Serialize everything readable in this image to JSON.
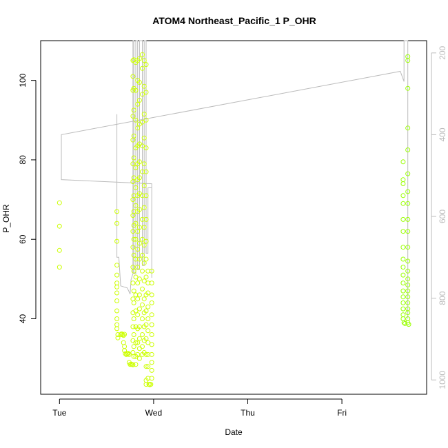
{
  "chart_data": {
    "type": "scatter",
    "title": "ATOM4 Northeast_Pacific_1 P_OHR",
    "xlabel": "Date",
    "ylabel": "P_OHR",
    "x_unit": "days",
    "x_ticks": [
      {
        "value": 0,
        "label": "Tue"
      },
      {
        "value": 1,
        "label": "Wed"
      },
      {
        "value": 2,
        "label": "Thu"
      },
      {
        "value": 3,
        "label": "Fri"
      }
    ],
    "xlim": [
      -0.2,
      3.9
    ],
    "ylim": [
      21,
      110
    ],
    "y_ticks": [
      40,
      60,
      80,
      100
    ],
    "y2_ticks": [
      200,
      400,
      600,
      800,
      1000
    ],
    "y2lim": [
      1035,
      170
    ],
    "grid": false,
    "colors": {
      "points_early": "#ccff00",
      "points_late": "#99ff00",
      "pressure_trace": "#bbbbbb"
    },
    "series": [
      {
        "values": [
          [
            0.0,
            69.2
          ],
          [
            0.0,
            63.3
          ],
          [
            0.0,
            57.2
          ],
          [
            0.0,
            53.0
          ],
          [
            0.61,
            67.0
          ],
          [
            0.61,
            64.0
          ],
          [
            0.61,
            59.5
          ],
          [
            0.61,
            53.5
          ],
          [
            0.61,
            51.0
          ],
          [
            0.61,
            49.0
          ],
          [
            0.61,
            48.0
          ],
          [
            0.61,
            46.5
          ],
          [
            0.61,
            44.5
          ],
          [
            0.61,
            42.0
          ],
          [
            0.61,
            40.0
          ],
          [
            0.61,
            38.5
          ],
          [
            0.61,
            37.5
          ],
          [
            0.62,
            36.0
          ],
          [
            0.62,
            35.2
          ],
          [
            0.65,
            36.0
          ],
          [
            0.66,
            36.2
          ],
          [
            0.67,
            36.0
          ],
          [
            0.68,
            35.8
          ],
          [
            0.69,
            36.1
          ],
          [
            0.68,
            34.0
          ],
          [
            0.69,
            33.0
          ],
          [
            0.69,
            32.0
          ],
          [
            0.7,
            31.2
          ],
          [
            0.71,
            31.0
          ],
          [
            0.72,
            31.2
          ],
          [
            0.73,
            31.3
          ],
          [
            0.74,
            31.0
          ],
          [
            0.74,
            29.0
          ],
          [
            0.75,
            28.5
          ],
          [
            0.76,
            28.6
          ],
          [
            0.77,
            28.5
          ],
          [
            0.78,
            28.4
          ],
          [
            0.78,
            105.0
          ],
          [
            0.78,
            101.0
          ],
          [
            0.78,
            97.5
          ],
          [
            0.78,
            91.0
          ],
          [
            0.78,
            85.0
          ],
          [
            0.78,
            79.0
          ],
          [
            0.78,
            74.5
          ],
          [
            0.78,
            70.0
          ],
          [
            0.78,
            66.0
          ],
          [
            0.78,
            62.0
          ],
          [
            0.78,
            58.0
          ],
          [
            0.78,
            53.0
          ],
          [
            0.78,
            49.0
          ],
          [
            0.78,
            45.0
          ],
          [
            0.78,
            41.5
          ],
          [
            0.78,
            38.0
          ],
          [
            0.78,
            34.5
          ],
          [
            0.78,
            31.5
          ],
          [
            0.79,
            105.2
          ],
          [
            0.79,
            98.0
          ],
          [
            0.79,
            92.5
          ],
          [
            0.79,
            86.0
          ],
          [
            0.79,
            80.5
          ],
          [
            0.79,
            75.5
          ],
          [
            0.79,
            71.0
          ],
          [
            0.79,
            67.0
          ],
          [
            0.79,
            63.5
          ],
          [
            0.79,
            60.0
          ],
          [
            0.79,
            56.0
          ],
          [
            0.79,
            52.0
          ],
          [
            0.79,
            47.0
          ],
          [
            0.79,
            44.0
          ],
          [
            0.79,
            40.0
          ],
          [
            0.79,
            36.0
          ],
          [
            0.79,
            33.0
          ],
          [
            0.79,
            30.5
          ],
          [
            0.81,
            104.5
          ],
          [
            0.81,
            97.5
          ],
          [
            0.81,
            90.0
          ],
          [
            0.81,
            83.0
          ],
          [
            0.81,
            78.0
          ],
          [
            0.81,
            73.0
          ],
          [
            0.81,
            68.5
          ],
          [
            0.81,
            64.0
          ],
          [
            0.81,
            60.0
          ],
          [
            0.81,
            55.0
          ],
          [
            0.81,
            50.5
          ],
          [
            0.81,
            46.0
          ],
          [
            0.81,
            42.0
          ],
          [
            0.81,
            38.0
          ],
          [
            0.81,
            34.0
          ],
          [
            0.81,
            30.5
          ],
          [
            0.81,
            28.5
          ],
          [
            0.83,
            105.0
          ],
          [
            0.83,
            100.0
          ],
          [
            0.83,
            94.0
          ],
          [
            0.83,
            88.0
          ],
          [
            0.83,
            83.5
          ],
          [
            0.83,
            79.0
          ],
          [
            0.83,
            75.0
          ],
          [
            0.83,
            71.0
          ],
          [
            0.83,
            67.0
          ],
          [
            0.83,
            62.0
          ],
          [
            0.83,
            57.5
          ],
          [
            0.83,
            53.0
          ],
          [
            0.83,
            49.0
          ],
          [
            0.83,
            45.0
          ],
          [
            0.83,
            41.0
          ],
          [
            0.83,
            37.5
          ],
          [
            0.83,
            34.0
          ],
          [
            0.83,
            31.0
          ],
          [
            0.85,
            105.5
          ],
          [
            0.85,
            99.5
          ],
          [
            0.85,
            95.0
          ],
          [
            0.85,
            89.0
          ],
          [
            0.85,
            84.0
          ],
          [
            0.85,
            79.5
          ],
          [
            0.85,
            75.5
          ],
          [
            0.85,
            71.5
          ],
          [
            0.85,
            67.5
          ],
          [
            0.85,
            63.0
          ],
          [
            0.85,
            59.0
          ],
          [
            0.85,
            55.0
          ],
          [
            0.85,
            50.0
          ],
          [
            0.85,
            46.0
          ],
          [
            0.85,
            42.5
          ],
          [
            0.85,
            38.0
          ],
          [
            0.85,
            35.0
          ],
          [
            0.85,
            32.5
          ],
          [
            0.85,
            30.0
          ],
          [
            0.88,
            106.5
          ],
          [
            0.88,
            103.0
          ],
          [
            0.88,
            96.5
          ],
          [
            0.88,
            89.5
          ],
          [
            0.88,
            83.5
          ],
          [
            0.88,
            77.0
          ],
          [
            0.88,
            71.0
          ],
          [
            0.88,
            65.0
          ],
          [
            0.88,
            60.0
          ],
          [
            0.88,
            56.0
          ],
          [
            0.88,
            52.0
          ],
          [
            0.88,
            47.5
          ],
          [
            0.88,
            43.5
          ],
          [
            0.88,
            40.0
          ],
          [
            0.88,
            36.0
          ],
          [
            0.88,
            33.0
          ],
          [
            0.88,
            31.0
          ],
          [
            0.9,
            105.0
          ],
          [
            0.9,
            98.5
          ],
          [
            0.9,
            91.5
          ],
          [
            0.9,
            85.5
          ],
          [
            0.9,
            79.0
          ],
          [
            0.9,
            73.5
          ],
          [
            0.9,
            68.0
          ],
          [
            0.9,
            63.0
          ],
          [
            0.9,
            58.5
          ],
          [
            0.9,
            54.0
          ],
          [
            0.9,
            49.5
          ],
          [
            0.9,
            45.0
          ],
          [
            0.9,
            41.5
          ],
          [
            0.9,
            38.0
          ],
          [
            0.9,
            34.5
          ],
          [
            0.9,
            31.5
          ],
          [
            0.92,
            104.0
          ],
          [
            0.92,
            97.0
          ],
          [
            0.92,
            90.0
          ],
          [
            0.92,
            83.0
          ],
          [
            0.92,
            77.0
          ],
          [
            0.92,
            71.0
          ],
          [
            0.92,
            65.0
          ],
          [
            0.92,
            59.5
          ],
          [
            0.92,
            55.0
          ],
          [
            0.92,
            50.5
          ],
          [
            0.92,
            46.0
          ],
          [
            0.92,
            42.0
          ],
          [
            0.92,
            38.5
          ],
          [
            0.92,
            35.0
          ],
          [
            0.92,
            31.0
          ],
          [
            0.92,
            28.0
          ],
          [
            0.92,
            24.5
          ],
          [
            0.92,
            23.5
          ],
          [
            0.94,
            52.0
          ],
          [
            0.94,
            49.0
          ],
          [
            0.94,
            46.5
          ],
          [
            0.94,
            43.0
          ],
          [
            0.94,
            40.0
          ],
          [
            0.94,
            37.0
          ],
          [
            0.94,
            34.0
          ],
          [
            0.94,
            31.0
          ],
          [
            0.94,
            28.0
          ],
          [
            0.94,
            25.0
          ],
          [
            0.95,
            23.5
          ],
          [
            0.96,
            23.4
          ],
          [
            0.97,
            23.5
          ],
          [
            0.98,
            52.0
          ],
          [
            0.98,
            49.0
          ],
          [
            0.98,
            46.0
          ],
          [
            0.98,
            44.0
          ],
          [
            0.98,
            41.0
          ],
          [
            0.98,
            38.5
          ],
          [
            0.98,
            36.0
          ],
          [
            0.98,
            33.5
          ],
          [
            0.98,
            31.0
          ],
          [
            0.98,
            29.0
          ],
          [
            0.98,
            27.0
          ],
          [
            0.98,
            25.0
          ]
        ]
      },
      {
        "values": [
          [
            3.65,
            79.5
          ],
          [
            3.65,
            75.0
          ],
          [
            3.65,
            74.0
          ],
          [
            3.65,
            71.0
          ],
          [
            3.65,
            69.0
          ],
          [
            3.65,
            65.0
          ],
          [
            3.65,
            62.0
          ],
          [
            3.65,
            58.0
          ],
          [
            3.65,
            55.0
          ],
          [
            3.65,
            53.0
          ],
          [
            3.65,
            51.0
          ],
          [
            3.65,
            49.0
          ],
          [
            3.65,
            47.0
          ],
          [
            3.65,
            45.5
          ],
          [
            3.65,
            44.0
          ],
          [
            3.65,
            42.5
          ],
          [
            3.65,
            41.0
          ],
          [
            3.65,
            40.0
          ],
          [
            3.66,
            39.0
          ],
          [
            3.67,
            38.8
          ],
          [
            3.7,
            106.0
          ],
          [
            3.7,
            105.0
          ],
          [
            3.7,
            98.0
          ],
          [
            3.7,
            88.0
          ],
          [
            3.7,
            82.5
          ],
          [
            3.7,
            76.5
          ],
          [
            3.7,
            72.0
          ],
          [
            3.7,
            69.0
          ],
          [
            3.7,
            65.0
          ],
          [
            3.7,
            62.0
          ],
          [
            3.7,
            58.0
          ],
          [
            3.7,
            54.5
          ],
          [
            3.7,
            52.0
          ],
          [
            3.7,
            50.0
          ],
          [
            3.7,
            48.5
          ],
          [
            3.7,
            47.0
          ],
          [
            3.7,
            45.5
          ],
          [
            3.7,
            44.0
          ],
          [
            3.7,
            42.5
          ],
          [
            3.7,
            41.5
          ],
          [
            3.7,
            40.0
          ],
          [
            3.7,
            39.0
          ],
          [
            3.71,
            38.6
          ]
        ]
      }
    ],
    "pressure_trace": {
      "axis": "right",
      "path": [
        [
          0.61,
          350
        ],
        [
          0.61,
          700
        ],
        [
          0.63,
          700
        ],
        [
          0.65,
          770
        ],
        [
          0.72,
          775
        ],
        [
          0.75,
          790
        ],
        [
          0.76,
          755
        ],
        [
          0.78,
          740
        ],
        [
          0.78,
          -100
        ],
        [
          0.79,
          -100
        ],
        [
          0.79,
          740
        ],
        [
          0.81,
          740
        ],
        [
          0.81,
          -100
        ],
        [
          0.83,
          -100
        ],
        [
          0.83,
          730
        ],
        [
          0.85,
          730
        ],
        [
          0.85,
          -100
        ],
        [
          0.88,
          -100
        ],
        [
          0.88,
          720
        ],
        [
          0.9,
          720
        ],
        [
          0.9,
          -100
        ],
        [
          0.92,
          -100
        ],
        [
          0.92,
          690
        ],
        [
          0.94,
          690
        ],
        [
          0.94,
          530
        ],
        [
          0.98,
          530
        ],
        [
          0.98,
          750
        ],
        [
          0.98,
          520
        ],
        [
          0.02,
          510
        ],
        [
          0.02,
          400
        ],
        [
          3.62,
          245
        ],
        [
          3.66,
          270
        ],
        [
          3.66,
          -100
        ],
        [
          3.7,
          -100
        ],
        [
          3.7,
          850
        ]
      ]
    }
  }
}
